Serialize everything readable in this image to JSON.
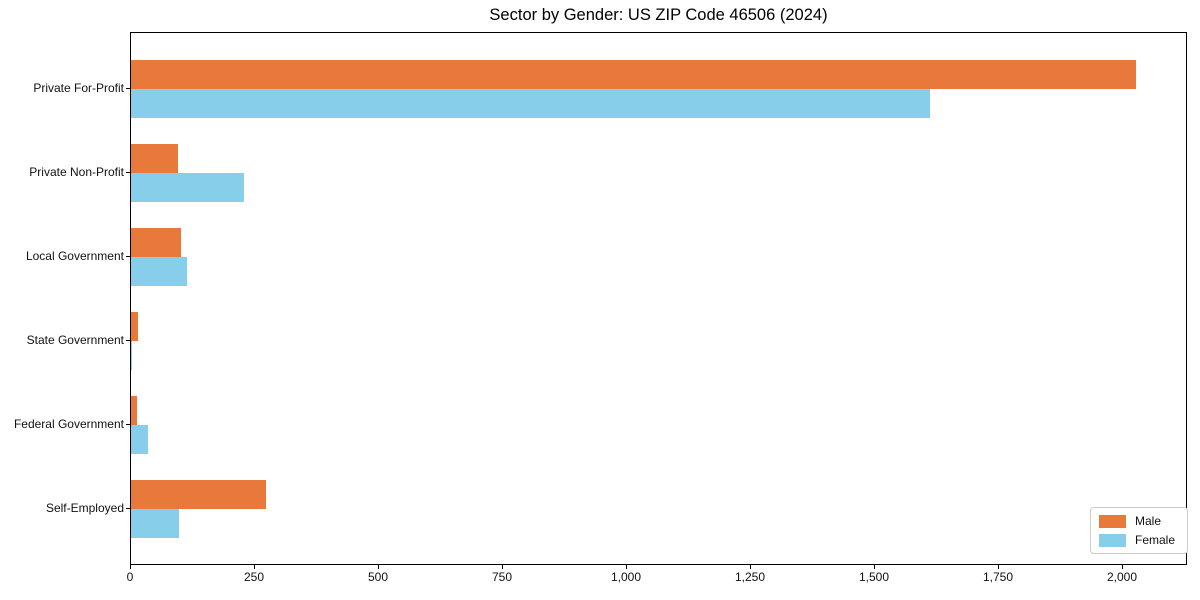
{
  "title": "Sector by Gender: US ZIP Code 46506 (2024)",
  "colors": {
    "male": "#E8793B",
    "female": "#87CEEB",
    "spine": "#000000",
    "legend_border": "#cccccc",
    "text": "#111111"
  },
  "legend": {
    "entries": [
      {
        "label": "Male",
        "color": "#E8793B"
      },
      {
        "label": "Female",
        "color": "#87CEEB"
      }
    ]
  },
  "chart_data": {
    "type": "bar",
    "orientation": "horizontal",
    "title": "Sector by Gender: US ZIP Code 46506 (2024)",
    "categories": [
      "Private For-Profit",
      "Private Non-Profit",
      "Local Government",
      "State Government",
      "Federal Government",
      "Self-Employed"
    ],
    "series": [
      {
        "name": "Male",
        "color": "#E8793B",
        "values": [
          2025,
          95,
          100,
          15,
          12,
          272
        ]
      },
      {
        "name": "Female",
        "color": "#87CEEB",
        "values": [
          1610,
          227,
          112,
          3,
          35,
          96
        ]
      }
    ],
    "xlabel": "",
    "ylabel": "",
    "xlim": [
      0,
      2130
    ],
    "xticks": [
      0,
      250,
      500,
      750,
      1000,
      1250,
      1500,
      1750,
      2000
    ],
    "xtick_labels": [
      "0",
      "250",
      "500",
      "750",
      "1,000",
      "1,250",
      "1,500",
      "1,750",
      "2,000"
    ],
    "grid": false,
    "legend_position": "lower right"
  }
}
